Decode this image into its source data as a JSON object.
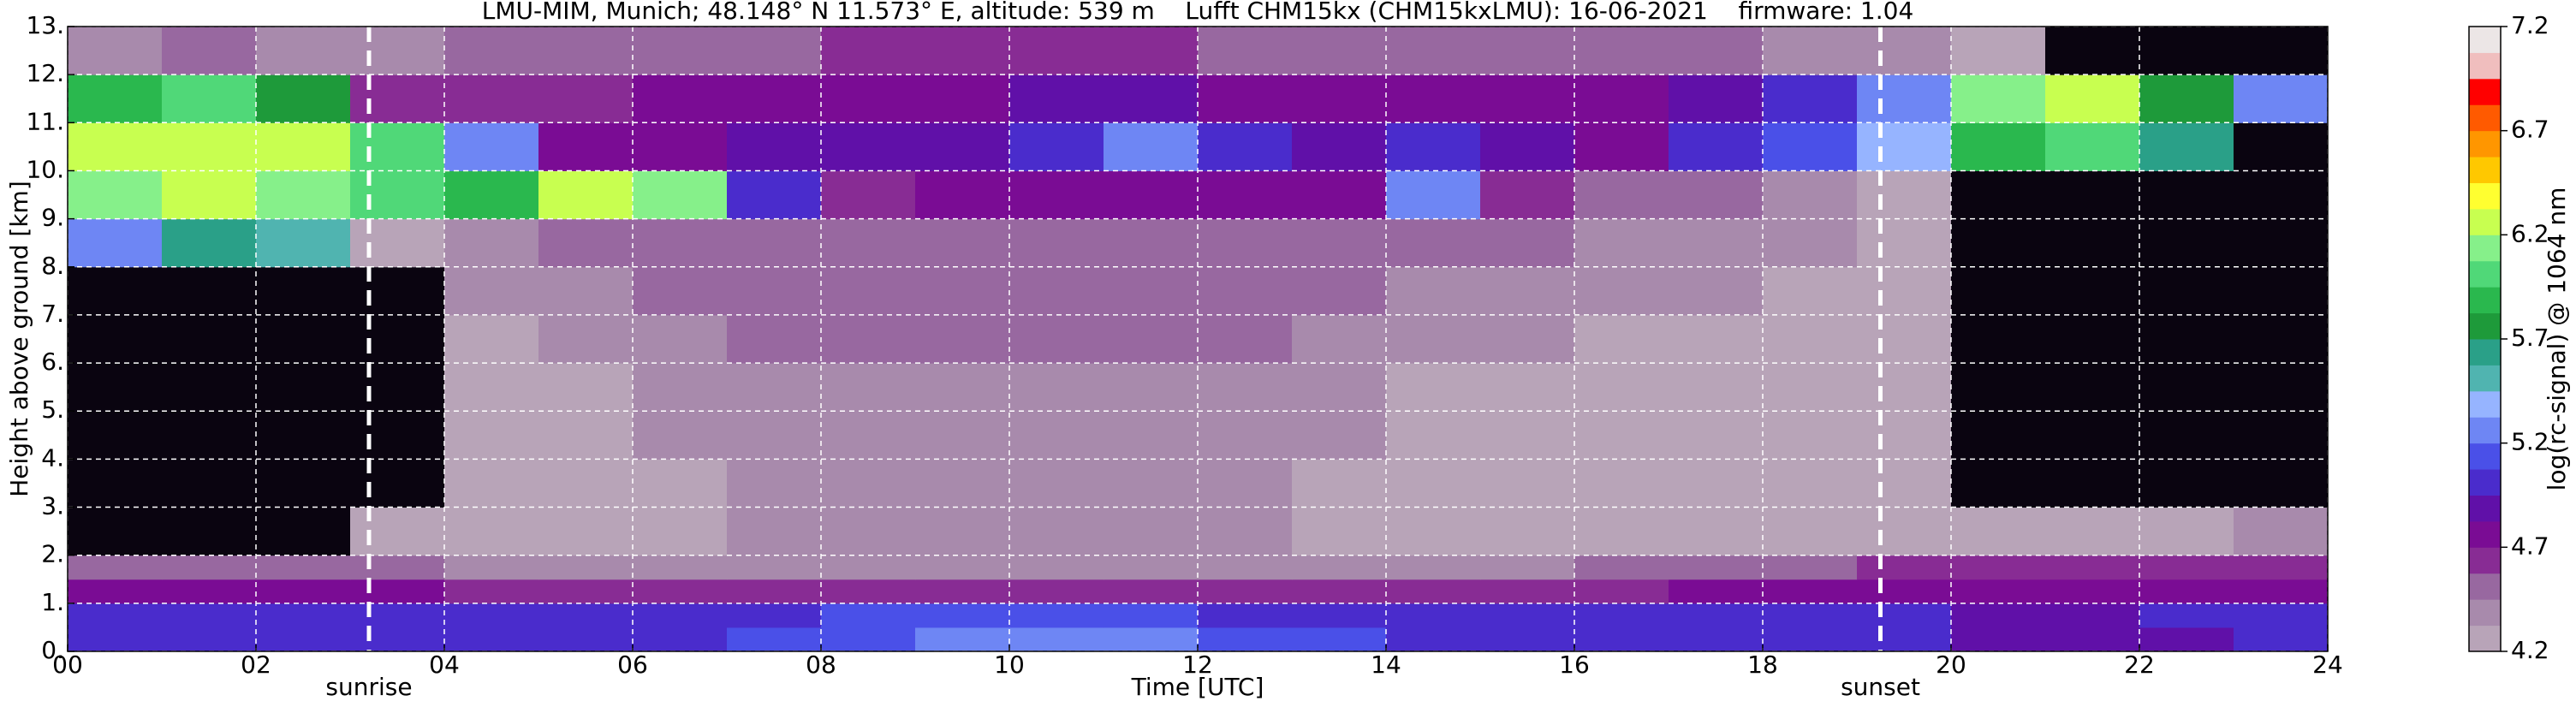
{
  "chart_data": {
    "type": "heatmap",
    "title": "LMU-MIM, Munich; 48.148° N 11.573° E, altitude: 539 m    Lufft CHM15kx (CHM15kxLMU): 16-06-2021    firmware: 1.04",
    "x_label": "Time [UTC]",
    "y_label": "Height above ground [km]",
    "colorbar_label": "log(rc-signal) @ 1064 nm",
    "x_edges": [
      0,
      1,
      2,
      3,
      4,
      5,
      6,
      7,
      8,
      9,
      10,
      11,
      12,
      13,
      14,
      15,
      16,
      17,
      18,
      19,
      20,
      21,
      22,
      23,
      24
    ],
    "y_edges": [
      0,
      0.5,
      1,
      1.5,
      2,
      3,
      4,
      5,
      6,
      7,
      8,
      9,
      10,
      11,
      12,
      13
    ],
    "z": [
      [
        5.0,
        5.0,
        5.0,
        5.0,
        5.0,
        5.0,
        5.05,
        5.1,
        5.15,
        5.2,
        5.2,
        5.2,
        5.15,
        5.1,
        5.05,
        5.0,
        5.0,
        5.0,
        5.0,
        5.0,
        4.85,
        4.85,
        4.9,
        4.95
      ],
      [
        5.05,
        5.05,
        5.05,
        5.05,
        5.0,
        5.0,
        5.0,
        5.0,
        5.1,
        5.15,
        5.15,
        5.1,
        5.05,
        5.0,
        5.0,
        5.0,
        5.0,
        5.0,
        5.0,
        4.95,
        4.9,
        4.9,
        4.95,
        5.0
      ],
      [
        4.75,
        4.75,
        4.75,
        4.7,
        4.65,
        4.6,
        4.6,
        4.6,
        4.6,
        4.6,
        4.6,
        4.6,
        4.6,
        4.6,
        4.6,
        4.6,
        4.65,
        4.7,
        4.75,
        4.75,
        4.75,
        4.75,
        4.75,
        4.75
      ],
      [
        4.55,
        4.5,
        4.5,
        4.45,
        4.35,
        4.35,
        4.35,
        4.35,
        4.35,
        4.35,
        4.35,
        4.35,
        4.35,
        4.35,
        4.35,
        4.4,
        4.45,
        4.5,
        4.55,
        4.6,
        4.6,
        4.6,
        4.65,
        4.65
      ],
      [
        4.1,
        4.1,
        4.1,
        4.2,
        4.3,
        4.3,
        4.3,
        4.35,
        4.35,
        4.35,
        4.35,
        4.35,
        4.35,
        4.3,
        4.3,
        4.3,
        4.3,
        4.3,
        4.3,
        4.25,
        4.2,
        4.2,
        4.3,
        4.4
      ],
      [
        4.0,
        4.0,
        4.0,
        4.1,
        4.3,
        4.3,
        4.3,
        4.35,
        4.35,
        4.35,
        4.35,
        4.35,
        4.35,
        4.3,
        4.3,
        4.3,
        4.3,
        4.3,
        4.3,
        4.2,
        4.0,
        4.0,
        4.0,
        4.0
      ],
      [
        4.0,
        4.0,
        4.0,
        4.1,
        4.3,
        4.3,
        4.35,
        4.4,
        4.4,
        4.4,
        4.4,
        4.4,
        4.4,
        4.35,
        4.3,
        4.3,
        4.3,
        4.3,
        4.3,
        4.2,
        4.0,
        4.0,
        4.0,
        4.0
      ],
      [
        4.0,
        4.0,
        4.0,
        4.1,
        4.3,
        4.3,
        4.35,
        4.4,
        4.4,
        4.4,
        4.4,
        4.4,
        4.4,
        4.35,
        4.3,
        4.3,
        4.3,
        4.3,
        4.3,
        4.2,
        4.0,
        4.0,
        4.0,
        4.0
      ],
      [
        4.0,
        4.0,
        4.0,
        4.1,
        4.3,
        4.35,
        4.4,
        4.45,
        4.45,
        4.45,
        4.45,
        4.45,
        4.45,
        4.4,
        4.35,
        4.35,
        4.3,
        4.3,
        4.3,
        4.2,
        4.0,
        4.0,
        4.0,
        4.0
      ],
      [
        4.0,
        4.0,
        4.0,
        4.1,
        4.35,
        4.4,
        4.45,
        4.5,
        4.5,
        4.5,
        4.5,
        4.5,
        4.5,
        4.45,
        4.4,
        4.4,
        4.35,
        4.35,
        4.3,
        4.2,
        4.0,
        4.0,
        4.0,
        4.0
      ],
      [
        5.3,
        5.6,
        5.5,
        4.2,
        4.4,
        4.5,
        4.5,
        4.55,
        4.55,
        4.55,
        4.55,
        4.55,
        4.55,
        4.5,
        4.45,
        4.45,
        4.4,
        4.4,
        4.35,
        4.2,
        4.0,
        4.0,
        4.0,
        4.0
      ],
      [
        6.1,
        6.2,
        6.1,
        6.0,
        5.9,
        6.3,
        6.1,
        5.0,
        4.65,
        4.7,
        4.7,
        4.8,
        4.75,
        4.7,
        5.2,
        4.6,
        4.5,
        4.5,
        4.4,
        4.3,
        4.1,
        4.0,
        4.0,
        4.0
      ],
      [
        6.2,
        6.3,
        6.2,
        6.0,
        5.2,
        4.8,
        4.8,
        4.85,
        4.85,
        4.9,
        5.0,
        5.2,
        4.95,
        4.9,
        4.95,
        4.85,
        4.8,
        5.0,
        5.1,
        5.4,
        5.9,
        6.0,
        5.6,
        4.1
      ],
      [
        5.9,
        6.0,
        5.8,
        4.6,
        4.6,
        4.65,
        4.7,
        4.7,
        4.75,
        4.8,
        4.85,
        4.85,
        4.8,
        4.8,
        4.75,
        4.7,
        4.8,
        4.9,
        5.0,
        5.2,
        6.1,
        6.2,
        5.8,
        5.2
      ],
      [
        4.4,
        4.5,
        4.4,
        4.4,
        4.5,
        4.5,
        4.55,
        4.55,
        4.6,
        4.6,
        4.6,
        4.6,
        4.55,
        4.5,
        4.5,
        4.5,
        4.5,
        4.45,
        4.4,
        4.4,
        4.2,
        4.1,
        4.0,
        4.0
      ]
    ],
    "zlim": [
      4.2,
      7.2
    ],
    "zticks": [
      4.2,
      4.7,
      5.2,
      5.7,
      6.2,
      6.7,
      7.2
    ],
    "colormap": [
      "#b8a4b8",
      "#a88aac",
      "#9868a0",
      "#882c94",
      "#7a0c94",
      "#6010a8",
      "#4a2ccc",
      "#4a50e8",
      "#6e86f4",
      "#96b4ff",
      "#50b4b0",
      "#2aa088",
      "#1e9a3a",
      "#2ab84e",
      "#50d878",
      "#86f08a",
      "#c8ff50",
      "#ffff30",
      "#ffc800",
      "#ff9600",
      "#ff5a00",
      "#ff0000",
      "#f0bebe",
      "#ece6e6"
    ],
    "under_color": "#0a0410",
    "xlim": [
      0,
      24
    ],
    "ylim": [
      0,
      13
    ],
    "xticks": [
      {
        "value": 0,
        "label": "00"
      },
      {
        "value": 2,
        "label": "02"
      },
      {
        "value": 4,
        "label": "04"
      },
      {
        "value": 6,
        "label": "06"
      },
      {
        "value": 8,
        "label": "08"
      },
      {
        "value": 10,
        "label": "10"
      },
      {
        "value": 12,
        "label": "12"
      },
      {
        "value": 14,
        "label": "14"
      },
      {
        "value": 16,
        "label": "16"
      },
      {
        "value": 18,
        "label": "18"
      },
      {
        "value": 20,
        "label": "20"
      },
      {
        "value": 22,
        "label": "22"
      },
      {
        "value": 24,
        "label": "24"
      }
    ],
    "yticks": [
      {
        "value": 0,
        "label": "0."
      },
      {
        "value": 1,
        "label": "1."
      },
      {
        "value": 2,
        "label": "2."
      },
      {
        "value": 3,
        "label": "3."
      },
      {
        "value": 4,
        "label": "4."
      },
      {
        "value": 5,
        "label": "5."
      },
      {
        "value": 6,
        "label": "6."
      },
      {
        "value": 7,
        "label": "7."
      },
      {
        "value": 8,
        "label": "8."
      },
      {
        "value": 9,
        "label": "9."
      },
      {
        "value": 10,
        "label": "10."
      },
      {
        "value": 11,
        "label": "11."
      },
      {
        "value": 12,
        "label": "12."
      },
      {
        "value": 13,
        "label": "13."
      }
    ],
    "grid": true,
    "annotations": [
      {
        "text": "sunrise",
        "x": 3.2
      },
      {
        "text": "sunset",
        "x": 19.25
      }
    ]
  }
}
